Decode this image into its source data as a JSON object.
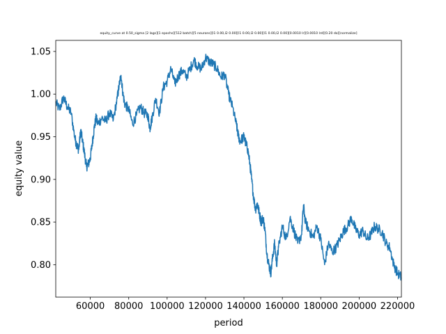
{
  "chart_data": {
    "type": "line",
    "title": "equity_curve at 0.50_sigma [2 lags][1 epochs][512 batch][5 neurons][l1 0.00,l2 0.00][l1 0.00,l2 0.00][l1 0.00,l2 0.00][0.0010 lr][0.0010 lrd][0.20 do][normalize]",
    "xlabel": "period",
    "ylabel": "equity value",
    "xlim": [
      42000,
      222000
    ],
    "ylim": [
      0.762,
      1.063
    ],
    "xticks": [
      60000,
      80000,
      100000,
      120000,
      140000,
      160000,
      180000,
      200000,
      220000
    ],
    "xtick_labels": [
      "60000",
      "80000",
      "100000",
      "120000",
      "140000",
      "160000",
      "180000",
      "200000",
      "220000"
    ],
    "yticks": [
      0.8,
      0.85,
      0.9,
      0.95,
      1.0,
      1.05
    ],
    "ytick_labels": [
      "0.80",
      "0.85",
      "0.90",
      "0.95",
      "1.00",
      "1.05"
    ],
    "grid": false,
    "line_color": "#1f77b4",
    "series": [
      {
        "x": [
          42000,
          44000,
          46000,
          48000,
          50000,
          52000,
          53000,
          54000,
          55000,
          56000,
          57000,
          58000,
          59000,
          60000,
          61000,
          62000,
          63000,
          64000,
          66000,
          68000,
          70000,
          72000,
          74000,
          75000,
          76000,
          77000,
          78000,
          80000,
          82000,
          84000,
          86000,
          88000,
          90000,
          91000,
          92000,
          94000,
          96000,
          98000,
          100000,
          102000,
          104000,
          106000,
          108000,
          110000,
          112000,
          114000,
          116000,
          118000,
          120000,
          122000,
          124000,
          126000,
          128000,
          130000,
          132000,
          134000,
          136000,
          137000,
          138000,
          140000,
          141000,
          142000,
          143000,
          144000,
          145000,
          146000,
          147000,
          148000,
          149000,
          150000,
          151000,
          152000,
          153000,
          154000,
          155000,
          156000,
          157000,
          158000,
          160000,
          162000,
          164000,
          166000,
          168000,
          170000,
          171000,
          172000,
          174000,
          176000,
          178000,
          180000,
          182000,
          184000,
          186000,
          188000,
          190000,
          192000,
          194000,
          196000,
          198000,
          200000,
          202000,
          204000,
          206000,
          208000,
          210000,
          212000,
          214000,
          216000,
          218000,
          220000,
          222000
        ],
        "y": [
          0.99,
          0.982,
          0.996,
          0.985,
          0.978,
          0.948,
          0.94,
          0.935,
          0.958,
          0.944,
          0.93,
          0.915,
          0.918,
          0.925,
          0.942,
          0.96,
          0.972,
          0.965,
          0.972,
          0.968,
          0.978,
          0.97,
          0.995,
          1.01,
          1.022,
          1.0,
          0.988,
          0.982,
          0.965,
          0.975,
          0.985,
          0.978,
          0.975,
          0.96,
          0.97,
          0.995,
          0.978,
          1.008,
          1.015,
          1.03,
          1.012,
          1.022,
          1.028,
          1.02,
          1.03,
          1.04,
          1.032,
          1.03,
          1.043,
          1.038,
          1.035,
          1.03,
          1.02,
          1.023,
          1.0,
          0.985,
          0.965,
          0.952,
          0.945,
          0.95,
          0.942,
          0.935,
          0.92,
          0.9,
          0.88,
          0.865,
          0.872,
          0.86,
          0.85,
          0.855,
          0.84,
          0.812,
          0.8,
          0.79,
          0.81,
          0.825,
          0.8,
          0.82,
          0.845,
          0.83,
          0.855,
          0.84,
          0.825,
          0.835,
          0.87,
          0.85,
          0.84,
          0.832,
          0.845,
          0.83,
          0.8,
          0.825,
          0.815,
          0.82,
          0.83,
          0.84,
          0.845,
          0.855,
          0.842,
          0.835,
          0.84,
          0.83,
          0.835,
          0.845,
          0.842,
          0.838,
          0.825,
          0.82,
          0.8,
          0.79,
          0.785
        ]
      }
    ]
  }
}
